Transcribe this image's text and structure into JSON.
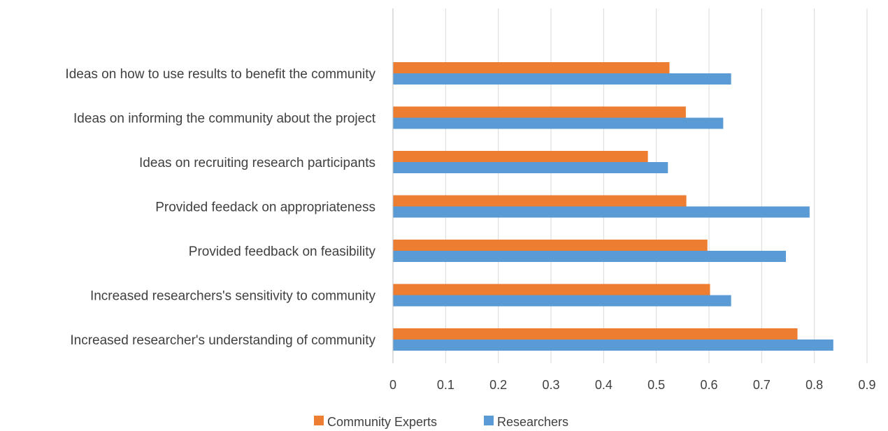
{
  "chart_data": {
    "type": "bar",
    "orientation": "horizontal",
    "categories": [
      "Ideas on how to use results  to benefit the community",
      "Ideas on informing the community about the project",
      "Ideas on recruiting research participants",
      "Provided feedack on appropriateness",
      "Provided feedback on feasibility",
      "Increased researchers's sensitivity to community",
      "Increased researcher's understanding of community"
    ],
    "series": [
      {
        "name": "Community Experts",
        "color": "#ED7D31",
        "values": [
          0.525,
          0.556,
          0.484,
          0.557,
          0.597,
          0.602,
          0.768
        ]
      },
      {
        "name": "Researchers",
        "color": "#5B9BD5",
        "values": [
          0.642,
          0.627,
          0.522,
          0.791,
          0.746,
          0.642,
          0.836
        ]
      }
    ],
    "xlim": [
      0,
      0.9
    ],
    "xticks": [
      "0",
      "0.1",
      "0.2",
      "0.3",
      "0.4",
      "0.5",
      "0.6",
      "0.7",
      "0.8",
      "0.9"
    ],
    "grid": true,
    "legend_position": "bottom"
  }
}
